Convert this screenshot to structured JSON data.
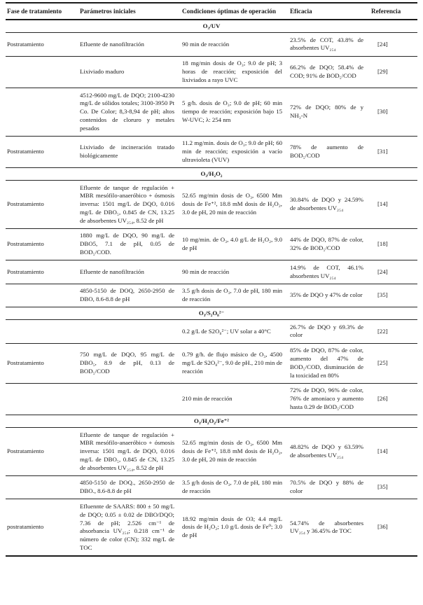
{
  "colors": {
    "background": "#ffffff",
    "text": "#1c1c1c",
    "rule": "#1b1b1b"
  },
  "table": {
    "headers": [
      "Fase de tratamiento",
      "Parámetros iniciales",
      "Condiciones óptimas de operación",
      "Eficacia",
      "Referencia"
    ],
    "sections": [
      {
        "title": "O₃/UV",
        "rows": [
          {
            "fase": "Postratamiento",
            "parametros": "Efluente de nanofiltración",
            "condiciones": "90 min de reacción",
            "eficacia": "23.5% de COT, 43.8% de absorbentes UV₂₅₄",
            "referencia": "[24]"
          },
          {
            "fase": "",
            "parametros": "Lixiviado maduro",
            "condiciones": "18 mg/min dosis de O₃; 9.0 de pH; 3 horas de reacción; exposición del lixiviados a rayo UVC",
            "eficacia": "66.2% de DQO; 58.4% de COD; 91% de BOD₅/COD",
            "referencia": "[29]"
          },
          {
            "fase": "",
            "parametros": "4512-9600 mg/L de DQO; 2100-4230 mg/L de sólidos totales; 3100-3950 Pt Co. De Color; 8,3-8,94 de pH; altos contenidos de cloruro y metales pesados",
            "condiciones": "5 g/h. dosis de O₃; 9.0 de pH; 60 min tiempo de reacción; exposición bajo 15 W-UVC; λ: 254 nm",
            "eficacia": "72% de DQO; 80% de y NH₃-N",
            "referencia": "[30]"
          },
          {
            "fase": "Postratamiento",
            "parametros": "Lixiviado de incineración tratado biológicamente",
            "condiciones": "11.2 mg/min. dosis de O₃; 9.0 de pH; 60 min de reacción; exposición a vacío ultravioleta (VUV)",
            "eficacia": "78% de aumento de BOD₅/COD",
            "referencia": "[31]"
          }
        ]
      },
      {
        "title": "O₃/H₂O₂",
        "rows": [
          {
            "fase": "Postratamiento",
            "parametros": "Efluente de tanque de regulación + MBR mesófilo-anaeróbico + ósmosis inversa: 1501 mg/L de DQO, 0.016 mg/L de DBO₅, 0.845 de CN, 13.25 de absorbentes UV₂₅₄, 8.52 de pH",
            "condiciones": "52.65 mg/min dosis de O₃, 6500 Mm dosis de Fe⁺², 18.8 mM dosis de H₂O₂, 3.0 de pH, 20 min de reacción",
            "eficacia": "30.84% de DQO y 24.59% de absorbentes UV₂₅₄",
            "referencia": "[14]"
          },
          {
            "fase": "Postratamiento",
            "parametros": "1880 mg/L de DQO, 90 mg/L de DBO5, 7.1 de pH, 0.05 de BOD₅/COD.",
            "condiciones": "10 mg/min. de O₃, 4.0 g/L de H₂O₂, 9.0 de pH",
            "eficacia": "44% de DQO, 87% de color, 32% de BOD₅/COD",
            "referencia": "[18]"
          },
          {
            "fase": "Postratamiento",
            "parametros": "Efluente de nanofiltración",
            "condiciones": "90 min de reacción",
            "eficacia": "14.9% de COT, 46.1% absorbentes UV₂₅₄",
            "referencia": "[24]"
          },
          {
            "fase": "",
            "parametros": "4850-5150 de DOQ, 2650-2950 de DBO, 8.6-8.8 de pH",
            "condiciones": "3.5 g/h dosis de O₃, 7.0 de pH, 180 min de reacción",
            "eficacia": "35% de DQO y 47% de color",
            "referencia": "[35]"
          }
        ]
      },
      {
        "title": "O₃/S₂O₈²⁻",
        "rows": [
          {
            "fase": "",
            "parametros": "",
            "condiciones": "0.2 g/L de S2O₈²⁻; UV solar a 40°C",
            "eficacia": "26.7% de DQO y 69.3% de color",
            "referencia": "[22]"
          },
          {
            "fase": "Postratamiento",
            "parametros": "750 mg/L de DQO, 95 mg/L de DBO₅, 8.9 de pH, 0.13 de BOD₅/COD",
            "condiciones": "0.79 g/h. de flujo másico de O₃, 4500 mg/L de S2O₈²⁻, 9.0 de pH., 210 min de reacción",
            "eficacia": "85% de DQO, 87% de color, aumento del 47% de BOD₅/COD, disminución de la toxicidad en 80%",
            "referencia": "[25]"
          },
          {
            "fase": "",
            "parametros": "",
            "condiciones": "210 min de reacción",
            "eficacia": "72% de DQO, 96% de color, 76% de amoniaco y aumento hasta 0.29 de BOD₅/COD",
            "referencia": "[26]"
          }
        ]
      },
      {
        "title": "O₃/H₂O₂/Fe⁺²",
        "rows": [
          {
            "fase": "Postratamiento",
            "parametros": "Efluente de tanque de regulación + MBR mesófilo-anaeróbico + ósmosis inversa: 1501 mg/L de DQO, 0.016 mg/L de DBO₅, 0.845 de CN, 13.25 de absorbentes UV₂₅₄, 8.52 de pH",
            "condiciones": "52.65 mg/min dosis de O₃, 6500 Mm dosis de Fe⁺², 18.8 mM dosis de H₂O₂, 3.0 de pH, 20 min de reacción",
            "eficacia": "48.82% de DQO y 63.59% de absorbentes UV₂₅₄",
            "referencia": "[14]"
          },
          {
            "fase": "",
            "parametros": "4850-5150 de DOQ., 2650-2950 de DBO., 8.6-8.8 de pH",
            "condiciones": "3.5 g/h dosis de O₃, 7.0 de pH, 180 min de reacción",
            "eficacia": "70.5% de DQO y 88% de color",
            "referencia": "[35]"
          },
          {
            "fase": "postratamiento",
            "parametros": "Efluennte de SAARS: 800 ± 50 mg/L de DQO; 0.05 ± 0.02 de DBO/DQO; 7.36 de pH; 2.526 cm⁻¹ de absorbancia UV₂₅₄; 0.218 cm⁻¹ de número de color (CN); 332 mg/L de TOC",
            "condiciones": "18.92 mg/min dosis de O3; 4.4 mg/L dosis de H₂O₂; 1.0 g/L dosis de Fe⁰; 3.0 de pH",
            "eficacia": "54.74% de absorbentes UV₂₅₄ y 36.45% de TOC",
            "referencia": "[36]"
          }
        ]
      }
    ]
  }
}
